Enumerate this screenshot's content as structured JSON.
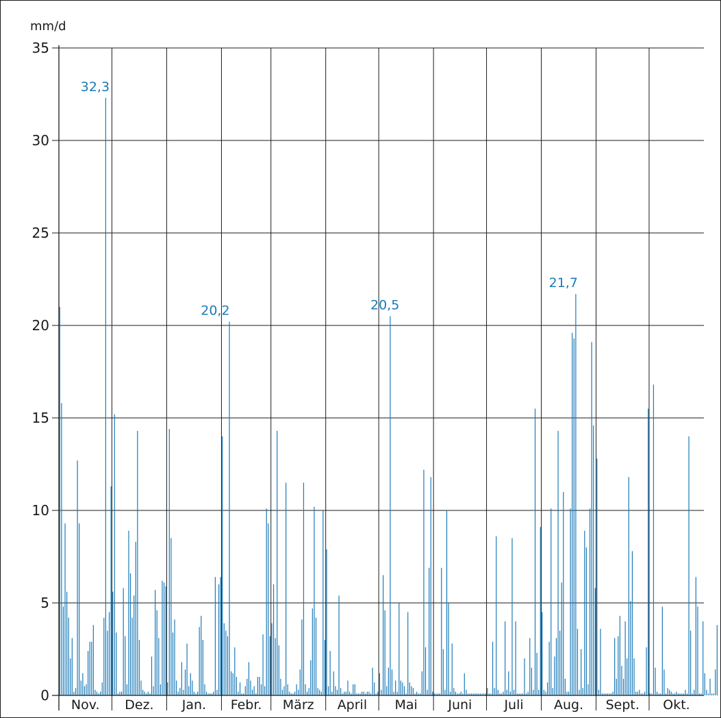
{
  "chart_data": {
    "type": "bar",
    "ylabel": "mm/d",
    "xlabel": "",
    "ylim": [
      0,
      35
    ],
    "yticks": [
      0,
      5,
      10,
      15,
      20,
      25,
      30,
      35
    ],
    "grid": true,
    "month_labels": [
      "Nov.",
      "Dez.",
      "Jan.",
      "Febr.",
      "März",
      "April",
      "Mai",
      "Juni",
      "Juli",
      "Aug.",
      "Sept.",
      "Okt."
    ],
    "month_days": [
      30,
      31,
      31,
      28,
      31,
      30,
      31,
      30,
      31,
      31,
      30,
      31
    ],
    "bar_color": "#1a7ab8",
    "annotations": [
      {
        "text": "32,3",
        "day": 20,
        "value": 32.3
      },
      {
        "text": "20,2",
        "day": 88,
        "value": 20.2
      },
      {
        "text": "20,5",
        "day": 184,
        "value": 20.5
      },
      {
        "text": "21,7",
        "day": 285,
        "value": 21.7
      }
    ],
    "values": [
      21.0,
      15.8,
      4.8,
      9.3,
      5.6,
      4.2,
      2.0,
      3.1,
      0.2,
      0.4,
      12.7,
      9.3,
      0.8,
      1.2,
      0.5,
      0.6,
      2.4,
      2.9,
      2.9,
      3.8,
      0.3,
      0.2,
      0.1,
      0.2,
      0.7,
      4.2,
      32.3,
      3.5,
      4.5,
      11.3,
      5.6,
      15.2,
      3.4,
      0.1,
      0.2,
      0.2,
      5.8,
      3.2,
      0.6,
      8.9,
      6.6,
      4.2,
      5.4,
      8.3,
      14.3,
      3.0,
      0.8,
      0.3,
      0.2,
      0.1,
      0.2,
      0.1,
      2.1,
      0.5,
      5.7,
      4.6,
      3.1,
      0.6,
      6.2,
      6.1,
      5.9,
      0.7,
      14.4,
      8.5,
      3.4,
      4.1,
      0.8,
      0.2,
      0.4,
      1.8,
      0.3,
      1.4,
      2.8,
      0.5,
      1.2,
      0.8,
      0.2,
      0.1,
      0.2,
      3.7,
      4.3,
      3.0,
      0.6,
      0.2,
      0.1,
      0.1,
      0.1,
      0.2,
      6.4,
      0.3,
      6.0,
      6.4,
      14.0,
      3.9,
      3.5,
      3.2,
      20.2,
      1.3,
      1.2,
      2.6,
      1.0,
      0.2,
      0.7,
      0.1,
      0.1,
      0.5,
      0.9,
      1.8,
      0.8,
      0.3,
      0.5,
      0.1,
      1.0,
      1.0,
      0.6,
      3.3,
      0.5,
      10.1,
      9.3,
      3.2,
      3.9,
      6.0,
      3.1,
      14.3,
      2.7,
      0.9,
      0.3,
      0.5,
      11.5,
      0.6,
      0.2,
      0.1,
      0.1,
      0.2,
      0.6,
      0.3,
      1.4,
      4.1,
      11.5,
      0.6,
      0.2,
      0.4,
      1.9,
      4.7,
      10.2,
      4.2,
      0.4,
      0.3,
      0.2,
      10.0,
      3.0,
      7.9,
      0.5,
      2.4,
      0.2,
      1.3,
      0.5,
      0.3,
      5.4,
      0.4,
      0.1,
      0.2,
      0.2,
      0.8,
      0.2,
      0.1,
      0.6,
      0.6,
      0.1,
      0.1,
      0.1,
      0.2,
      0.2,
      0.1,
      0.2,
      0.2,
      0.1,
      1.5,
      0.7,
      0.1,
      0.2,
      1.2,
      0.3,
      6.5,
      4.6,
      0.5,
      1.5,
      20.5,
      1.4,
      0.2,
      0.8,
      0.2,
      5.0,
      0.8,
      0.7,
      0.5,
      0.1,
      4.5,
      0.7,
      0.5,
      0.4,
      0.1,
      0.2,
      0.1,
      0.1,
      1.3,
      12.2,
      2.6,
      0.3,
      6.9,
      11.8,
      0.2,
      0.1,
      0.1,
      0.1,
      0.1,
      6.9,
      2.5,
      0.3,
      10.0,
      5.0,
      0.2,
      2.8,
      0.4,
      0.2,
      0.1,
      0.1,
      0.2,
      0.1,
      1.2,
      0.3,
      0.1,
      0.1,
      0.1,
      0.1,
      0.1,
      0.1,
      0.1,
      0.1,
      0.1,
      0.1,
      0.1,
      0.4,
      0.1,
      0.1,
      2.9,
      0.4,
      8.6,
      0.3,
      0.1,
      0.1,
      0.2,
      4.0,
      0.3,
      1.3,
      0.2,
      8.5,
      0.3,
      4.0,
      0.1,
      0.1,
      0.1,
      0.1,
      2.0,
      0.1,
      0.2,
      3.1,
      1.5,
      0.3,
      15.5,
      2.3,
      0.3,
      9.1,
      4.5,
      0.3,
      0.2,
      0.7,
      2.9,
      10.1,
      0.4,
      2.1,
      3.1,
      14.3,
      3.5,
      6.1,
      11.0,
      0.9,
      0.2,
      0.2,
      10.1,
      19.6,
      19.3,
      21.7,
      3.6,
      0.3,
      2.5,
      0.4,
      8.9,
      8.0,
      0.6,
      10.1,
      19.1,
      14.6,
      5.8,
      12.8,
      0.3,
      3.6,
      0.1,
      0.1,
      0.1,
      0.1,
      0.1,
      0.1,
      0.2,
      3.1,
      0.9,
      3.2,
      4.3,
      1.6,
      0.9,
      4.0,
      2.0,
      11.8,
      5.1,
      7.8,
      2.0,
      0.2,
      0.2,
      0.3,
      0.1,
      0.1,
      0.2,
      2.6,
      15.5,
      0.1,
      0.1,
      16.8,
      1.5,
      0.2,
      0.1,
      0.1,
      4.8,
      1.4,
      0.1,
      0.4,
      0.3,
      0.2,
      0.1,
      0.1,
      0.2,
      0.1,
      0.1,
      0.1,
      0.1,
      0.3,
      0.1,
      14.0,
      3.5,
      0.1,
      0.3,
      6.4,
      4.8,
      0.1,
      0.1,
      4.0,
      1.2,
      0.3,
      0.1,
      0.9,
      0.1,
      0.1,
      1.4,
      3.8
    ]
  }
}
